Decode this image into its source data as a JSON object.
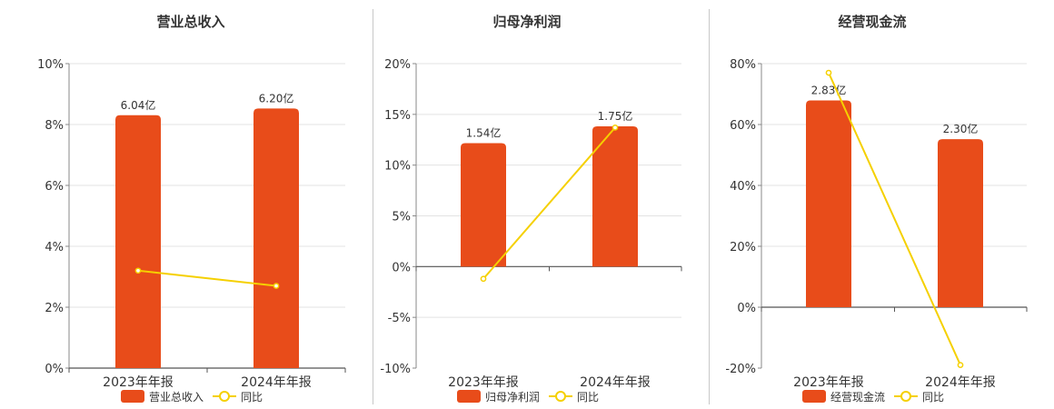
{
  "chart_data": [
    {
      "type": "bar",
      "title": "营业总收入",
      "categories": [
        "2023年年报",
        "2024年年报"
      ],
      "series": [
        {
          "name": "营业总收入",
          "type": "bar",
          "values": [
            6.04,
            6.2
          ],
          "labels": [
            "6.04亿",
            "6.20亿"
          ],
          "color": "#e84c1a"
        },
        {
          "name": "同比",
          "type": "line",
          "values": [
            3.2,
            2.7
          ],
          "unit": "%",
          "color": "#f5d000"
        }
      ],
      "y_axis": {
        "unit": "%",
        "min": 0,
        "max": 10,
        "ticks": [
          "0%",
          "2%",
          "4%",
          "6%",
          "8%",
          "10%"
        ]
      },
      "grid": true,
      "legend": "bottom"
    },
    {
      "type": "bar",
      "title": "归母净利润",
      "categories": [
        "2023年年报",
        "2024年年报"
      ],
      "series": [
        {
          "name": "归母净利润",
          "type": "bar",
          "values": [
            1.54,
            1.75
          ],
          "labels": [
            "1.54亿",
            "1.75亿"
          ],
          "color": "#e84c1a"
        },
        {
          "name": "同比",
          "type": "line",
          "values": [
            -1.2,
            13.7
          ],
          "unit": "%",
          "color": "#f5d000"
        }
      ],
      "y_axis": {
        "unit": "%",
        "min": -10,
        "max": 20,
        "ticks": [
          "-10%",
          "-5%",
          "0%",
          "5%",
          "10%",
          "15%",
          "20%"
        ]
      },
      "grid": true,
      "legend": "bottom"
    },
    {
      "type": "bar",
      "title": "经营现金流",
      "categories": [
        "2023年年报",
        "2024年年报"
      ],
      "series": [
        {
          "name": "经营现金流",
          "type": "bar",
          "values": [
            2.83,
            2.3
          ],
          "labels": [
            "2.83亿",
            "2.30亿"
          ],
          "color": "#e84c1a"
        },
        {
          "name": "同比",
          "type": "line",
          "values": [
            77,
            -19
          ],
          "unit": "%",
          "color": "#f5d000"
        }
      ],
      "y_axis": {
        "unit": "%",
        "min": -20,
        "max": 80,
        "ticks": [
          "-20%",
          "0%",
          "20%",
          "40%",
          "60%",
          "80%"
        ]
      },
      "grid": true,
      "legend": "bottom"
    }
  ]
}
